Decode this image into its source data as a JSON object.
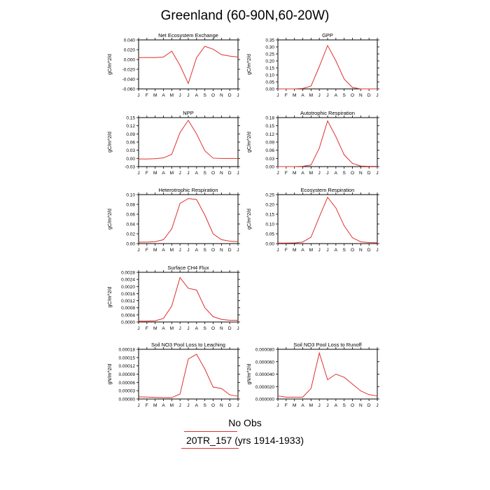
{
  "title": "Greenland (60-90N,60-20W)",
  "legend": {
    "obs_label": "No Obs",
    "run_label": "20TR_157 (yrs 1914-1933)",
    "line_color": "#e03030"
  },
  "chart_data": [
    {
      "type": "line",
      "title": "Net Ecosystem Exchange",
      "ylabel": "gC/m^2/d",
      "categories": [
        "J",
        "F",
        "M",
        "A",
        "M",
        "J",
        "J",
        "A",
        "S",
        "O",
        "N",
        "D",
        "J"
      ],
      "yticks": [
        "0.040",
        "0.020",
        "0.000",
        "-0.020",
        "-0.040",
        "-0.060"
      ],
      "ylim": [
        -0.06,
        0.04
      ],
      "values": [
        0.004,
        0.004,
        0.004,
        0.005,
        0.017,
        -0.012,
        -0.049,
        0.004,
        0.027,
        0.021,
        0.01,
        0.007,
        0.005
      ],
      "color": "#e03030"
    },
    {
      "type": "line",
      "title": "GPP",
      "ylabel": "gC/m^2/d",
      "categories": [
        "J",
        "F",
        "M",
        "A",
        "M",
        "J",
        "J",
        "A",
        "S",
        "O",
        "N",
        "D",
        "J"
      ],
      "yticks": [
        "0.35",
        "0.30",
        "0.25",
        "0.20",
        "0.15",
        "0.10",
        "0.05",
        "0.00"
      ],
      "ylim": [
        0,
        0.35
      ],
      "values": [
        0,
        0,
        0,
        0.003,
        0.02,
        0.16,
        0.31,
        0.2,
        0.07,
        0.01,
        0,
        0,
        0
      ],
      "color": "#e03030"
    },
    {
      "type": "line",
      "title": "NPP",
      "ylabel": "gC/m^2/d",
      "categories": [
        "J",
        "F",
        "M",
        "A",
        "M",
        "J",
        "J",
        "A",
        "S",
        "O",
        "N",
        "D",
        "J"
      ],
      "yticks": [
        "0.15",
        "0.12",
        "0.09",
        "0.06",
        "0.03",
        "0.00",
        "-0.03"
      ],
      "ylim": [
        -0.03,
        0.15
      ],
      "values": [
        -0.002,
        -0.002,
        -0.001,
        0.002,
        0.015,
        0.095,
        0.14,
        0.09,
        0.028,
        0.001,
        0,
        0,
        0
      ],
      "color": "#e03030"
    },
    {
      "type": "line",
      "title": "Autotrophic Respiration",
      "ylabel": "gC/m^2/d",
      "categories": [
        "J",
        "F",
        "M",
        "A",
        "M",
        "J",
        "J",
        "A",
        "S",
        "O",
        "N",
        "D",
        "J"
      ],
      "yticks": [
        "0.18",
        "0.15",
        "0.12",
        "0.09",
        "0.06",
        "0.03",
        "0.00"
      ],
      "ylim": [
        0,
        0.18
      ],
      "values": [
        0,
        0,
        0,
        0.001,
        0.006,
        0.068,
        0.168,
        0.11,
        0.043,
        0.012,
        0.002,
        0.001,
        0.001
      ],
      "color": "#e03030"
    },
    {
      "type": "line",
      "title": "Heterotrophic Respiration",
      "ylabel": "gC/m^2/d",
      "categories": [
        "J",
        "F",
        "M",
        "A",
        "M",
        "J",
        "J",
        "A",
        "S",
        "O",
        "N",
        "D",
        "J"
      ],
      "yticks": [
        "0.10",
        "0.08",
        "0.06",
        "0.04",
        "0.02",
        "0.00"
      ],
      "ylim": [
        0,
        0.1
      ],
      "values": [
        0.003,
        0.003,
        0.004,
        0.008,
        0.03,
        0.082,
        0.092,
        0.09,
        0.058,
        0.02,
        0.008,
        0.005,
        0.004
      ],
      "color": "#e03030"
    },
    {
      "type": "line",
      "title": "Ecosystem Respiration",
      "ylabel": "gC/m^2/d",
      "categories": [
        "J",
        "F",
        "M",
        "A",
        "M",
        "J",
        "J",
        "A",
        "S",
        "O",
        "N",
        "D",
        "J"
      ],
      "yticks": [
        "0.25",
        "0.20",
        "0.15",
        "0.10",
        "0.05",
        "0.00"
      ],
      "ylim": [
        0,
        0.275
      ],
      "values": [
        0.003,
        0.003,
        0.004,
        0.009,
        0.036,
        0.15,
        0.26,
        0.2,
        0.1,
        0.033,
        0.01,
        0.006,
        0.005
      ],
      "color": "#e03030"
    },
    {
      "type": "line",
      "title": "Surface CH4 Flux",
      "ylabel": "gC/m^2/d",
      "categories": [
        "J",
        "F",
        "M",
        "A",
        "M",
        "J",
        "J",
        "A",
        "S",
        "O",
        "N",
        "D",
        "J"
      ],
      "yticks": [
        "0.0028",
        "0.0024",
        "0.0020",
        "0.0016",
        "0.0012",
        "0.0008",
        "0.0004",
        "0.0000"
      ],
      "ylim": [
        0,
        0.0028
      ],
      "values": [
        5e-05,
        5e-05,
        7e-05,
        0.0002,
        0.0009,
        0.0025,
        0.0019,
        0.0018,
        0.0008,
        0.0003,
        0.00015,
        0.0001,
        0.0001
      ],
      "color": "#e03030"
    },
    {
      "type": "line",
      "title": "Soil NO3 Pool Loss to Leaching",
      "ylabel": "gN/m^2/d",
      "categories": [
        "J",
        "F",
        "M",
        "A",
        "M",
        "J",
        "J",
        "A",
        "S",
        "O",
        "N",
        "D",
        "J"
      ],
      "yticks": [
        "0.00018",
        "0.00015",
        "0.00012",
        "0.00009",
        "0.00006",
        "0.00003",
        "0.00000"
      ],
      "ylim": [
        0,
        0.00018
      ],
      "values": [
        8e-06,
        7e-06,
        6e-06,
        5e-06,
        5e-06,
        1.8e-05,
        0.000145,
        0.000162,
        0.000108,
        4.3e-05,
        3.8e-05,
        1.5e-05,
        1e-05
      ],
      "color": "#e03030"
    },
    {
      "type": "line",
      "title": "Soil NO3 Pool Loss to Runoff",
      "ylabel": "gN/m^2/d",
      "categories": [
        "J",
        "F",
        "M",
        "A",
        "M",
        "J",
        "J",
        "A",
        "S",
        "O",
        "N",
        "D",
        "J"
      ],
      "yticks": [
        "0.000080",
        "0.000060",
        "0.000040",
        "0.000020",
        "0.000000"
      ],
      "ylim": [
        0,
        8e-05
      ],
      "values": [
        5e-06,
        3e-06,
        3e-06,
        3e-06,
        1.7e-05,
        7.4e-05,
        3.1e-05,
        4e-05,
        3.5e-05,
        2.4e-05,
        1.3e-05,
        7e-06,
        5e-06
      ],
      "color": "#e03030"
    }
  ]
}
